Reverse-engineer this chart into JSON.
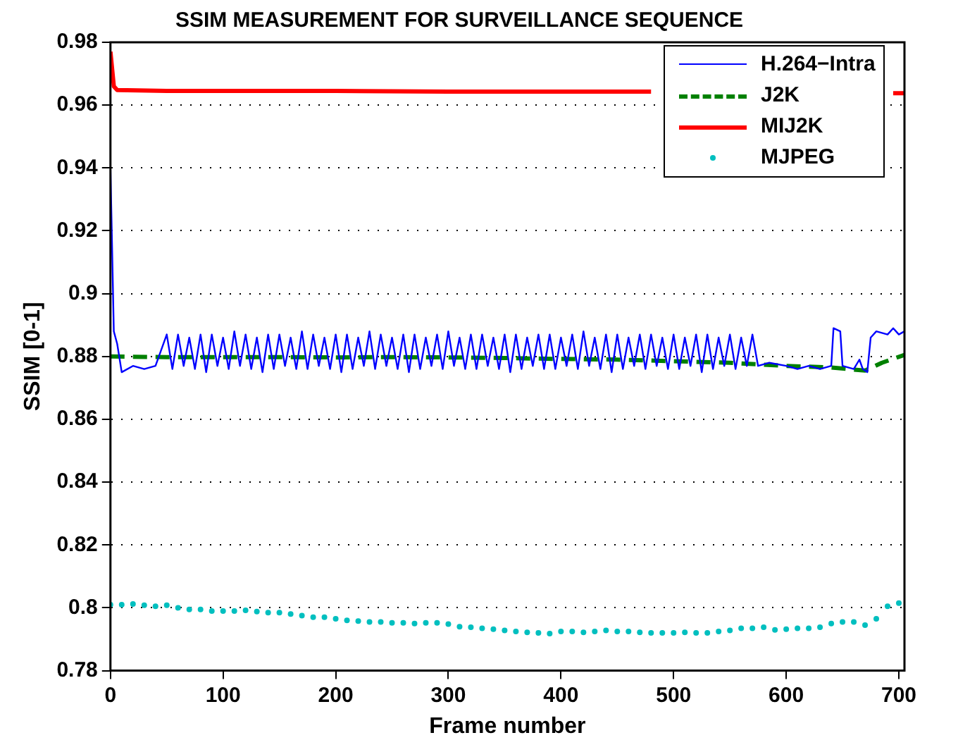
{
  "chart_data": {
    "type": "line",
    "title": "SSIM MEASUREMENT FOR SURVEILLANCE SEQUENCE",
    "xlabel": "Frame number",
    "ylabel": "SSIM [0-1]",
    "xlim": [
      0,
      705
    ],
    "xticks": [
      0,
      100,
      200,
      300,
      400,
      500,
      600,
      700
    ],
    "ylim": [
      0.78,
      0.98
    ],
    "yticks": [
      0.78,
      0.8,
      0.82,
      0.84,
      0.86,
      0.88,
      0.9,
      0.92,
      0.94,
      0.96,
      0.98
    ],
    "grid": "y",
    "legend": "top right",
    "series": [
      {
        "name": "H.264−Intra",
        "color": "#0000ff",
        "line_style": "solid",
        "marker": "none",
        "x": [
          0,
          3,
          6,
          10,
          20,
          30,
          40,
          50,
          55,
          60,
          65,
          70,
          75,
          80,
          85,
          90,
          95,
          100,
          105,
          110,
          115,
          120,
          125,
          130,
          135,
          140,
          145,
          150,
          155,
          160,
          165,
          170,
          175,
          180,
          185,
          190,
          195,
          200,
          205,
          210,
          215,
          220,
          225,
          230,
          235,
          240,
          245,
          250,
          255,
          260,
          265,
          270,
          275,
          280,
          285,
          290,
          295,
          300,
          305,
          310,
          315,
          320,
          325,
          330,
          335,
          340,
          345,
          350,
          355,
          360,
          365,
          370,
          375,
          380,
          385,
          390,
          395,
          400,
          405,
          410,
          415,
          420,
          425,
          430,
          435,
          440,
          445,
          450,
          455,
          460,
          465,
          470,
          475,
          480,
          485,
          490,
          495,
          500,
          505,
          510,
          515,
          520,
          525,
          530,
          535,
          540,
          545,
          550,
          555,
          560,
          565,
          570,
          575,
          585,
          600,
          610,
          620,
          630,
          640,
          642,
          648,
          650,
          660,
          665,
          668,
          672,
          675,
          680,
          690,
          695,
          700,
          705
        ],
        "values": [
          0.94,
          0.888,
          0.884,
          0.875,
          0.877,
          0.876,
          0.877,
          0.887,
          0.876,
          0.887,
          0.877,
          0.886,
          0.876,
          0.887,
          0.875,
          0.887,
          0.877,
          0.886,
          0.876,
          0.888,
          0.877,
          0.887,
          0.876,
          0.886,
          0.875,
          0.887,
          0.876,
          0.887,
          0.877,
          0.886,
          0.876,
          0.888,
          0.876,
          0.887,
          0.877,
          0.886,
          0.876,
          0.887,
          0.875,
          0.887,
          0.876,
          0.886,
          0.877,
          0.888,
          0.876,
          0.887,
          0.877,
          0.886,
          0.876,
          0.887,
          0.875,
          0.887,
          0.876,
          0.886,
          0.877,
          0.887,
          0.876,
          0.888,
          0.877,
          0.886,
          0.876,
          0.887,
          0.876,
          0.887,
          0.877,
          0.886,
          0.876,
          0.887,
          0.875,
          0.887,
          0.876,
          0.886,
          0.877,
          0.887,
          0.876,
          0.887,
          0.876,
          0.886,
          0.877,
          0.887,
          0.876,
          0.888,
          0.877,
          0.886,
          0.876,
          0.887,
          0.875,
          0.887,
          0.876,
          0.886,
          0.877,
          0.887,
          0.876,
          0.887,
          0.877,
          0.886,
          0.876,
          0.887,
          0.876,
          0.886,
          0.877,
          0.887,
          0.875,
          0.887,
          0.876,
          0.886,
          0.877,
          0.887,
          0.876,
          0.886,
          0.877,
          0.887,
          0.877,
          0.878,
          0.877,
          0.876,
          0.877,
          0.876,
          0.877,
          0.889,
          0.888,
          0.877,
          0.876,
          0.879,
          0.876,
          0.875,
          0.886,
          0.888,
          0.887,
          0.889,
          0.887,
          0.888
        ]
      },
      {
        "name": "J2K",
        "color": "#008000",
        "line_style": "dashed",
        "marker": "none",
        "x": [
          0,
          50,
          100,
          150,
          200,
          250,
          300,
          350,
          400,
          450,
          500,
          550,
          600,
          640,
          670,
          685,
          705
        ],
        "values": [
          0.88,
          0.8798,
          0.8798,
          0.8798,
          0.8797,
          0.8798,
          0.8797,
          0.8795,
          0.8792,
          0.879,
          0.8785,
          0.878,
          0.877,
          0.8765,
          0.8755,
          0.878,
          0.8805
        ]
      },
      {
        "name": "MIJ2K",
        "color": "#ff0000",
        "line_style": "solid",
        "marker": "none",
        "x": [
          0,
          3,
          6,
          50,
          100,
          200,
          300,
          400,
          480,
          600,
          695,
          705
        ],
        "values": [
          0.977,
          0.966,
          0.9648,
          0.9645,
          0.9645,
          0.9645,
          0.9643,
          0.9643,
          0.9643,
          null,
          0.9638,
          0.9638
        ]
      },
      {
        "name": "MJPEG",
        "type": "scatter",
        "color": "#00bfbf",
        "marker": "circle",
        "x": [
          0,
          10,
          20,
          30,
          40,
          50,
          60,
          70,
          80,
          90,
          100,
          110,
          120,
          130,
          140,
          150,
          160,
          170,
          180,
          190,
          200,
          210,
          220,
          230,
          240,
          250,
          260,
          270,
          280,
          290,
          300,
          310,
          320,
          330,
          340,
          350,
          360,
          370,
          380,
          390,
          400,
          410,
          420,
          430,
          440,
          450,
          460,
          470,
          480,
          490,
          500,
          510,
          520,
          530,
          540,
          550,
          560,
          570,
          580,
          590,
          600,
          610,
          620,
          630,
          640,
          650,
          660,
          670,
          680,
          690,
          700
        ],
        "values": [
          0.801,
          0.801,
          0.8012,
          0.8008,
          0.8005,
          0.8008,
          0.8,
          0.7995,
          0.7995,
          0.799,
          0.799,
          0.799,
          0.7992,
          0.7988,
          0.7985,
          0.7985,
          0.798,
          0.7975,
          0.797,
          0.797,
          0.7965,
          0.796,
          0.7958,
          0.7955,
          0.7955,
          0.7952,
          0.7952,
          0.795,
          0.7952,
          0.7952,
          0.7948,
          0.794,
          0.7938,
          0.7935,
          0.7932,
          0.7928,
          0.7925,
          0.7922,
          0.792,
          0.7918,
          0.7925,
          0.7925,
          0.7922,
          0.7925,
          0.7928,
          0.7925,
          0.7925,
          0.7922,
          0.792,
          0.792,
          0.792,
          0.7922,
          0.792,
          0.792,
          0.7925,
          0.7928,
          0.7935,
          0.7935,
          0.7938,
          0.793,
          0.7932,
          0.7935,
          0.7935,
          0.7938,
          0.795,
          0.7955,
          0.7955,
          0.7945,
          0.7965,
          0.8005,
          0.8015
        ]
      }
    ]
  }
}
